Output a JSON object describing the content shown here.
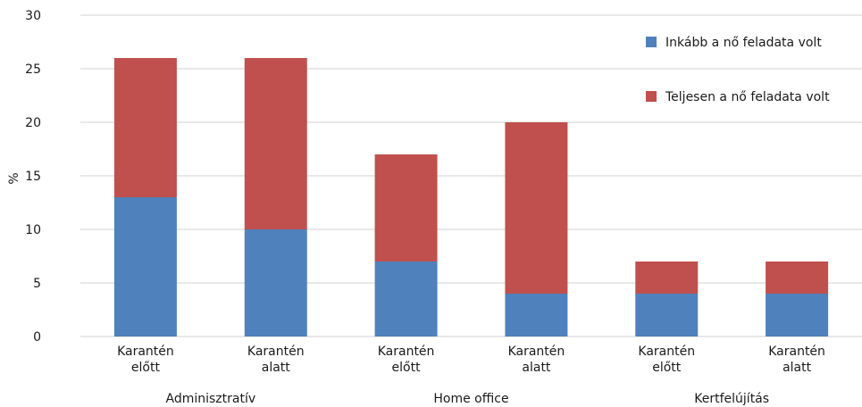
{
  "chart_data": {
    "type": "bar",
    "stacked": true,
    "ylabel": "%",
    "ylim": [
      0,
      30
    ],
    "yticks": [
      0,
      5,
      10,
      15,
      20,
      25,
      30
    ],
    "grid": true,
    "legend_position": "top-right",
    "categories": [
      {
        "line1": "Karantén",
        "line2": "előtt"
      },
      {
        "line1": "Karantén",
        "line2": "alatt"
      },
      {
        "line1": "Karantén",
        "line2": "előtt"
      },
      {
        "line1": "Karantén",
        "line2": "alatt"
      },
      {
        "line1": "Karantén",
        "line2": "előtt"
      },
      {
        "line1": "Karantén",
        "line2": "alatt"
      }
    ],
    "groups": [
      {
        "label": "Adminisztratív",
        "span": [
          0,
          1
        ]
      },
      {
        "label": "Home office",
        "span": [
          2,
          3
        ]
      },
      {
        "label": "Kertfelújítás",
        "span": [
          4,
          5
        ]
      }
    ],
    "series": [
      {
        "name": "Inkább a nő feladata volt",
        "color": "#4f81bd",
        "values": [
          13,
          10,
          7,
          4,
          4,
          4
        ]
      },
      {
        "name": "Teljesen a nő feladata volt",
        "color": "#c0504d",
        "values": [
          13,
          16,
          10,
          16,
          3,
          3
        ]
      }
    ]
  }
}
